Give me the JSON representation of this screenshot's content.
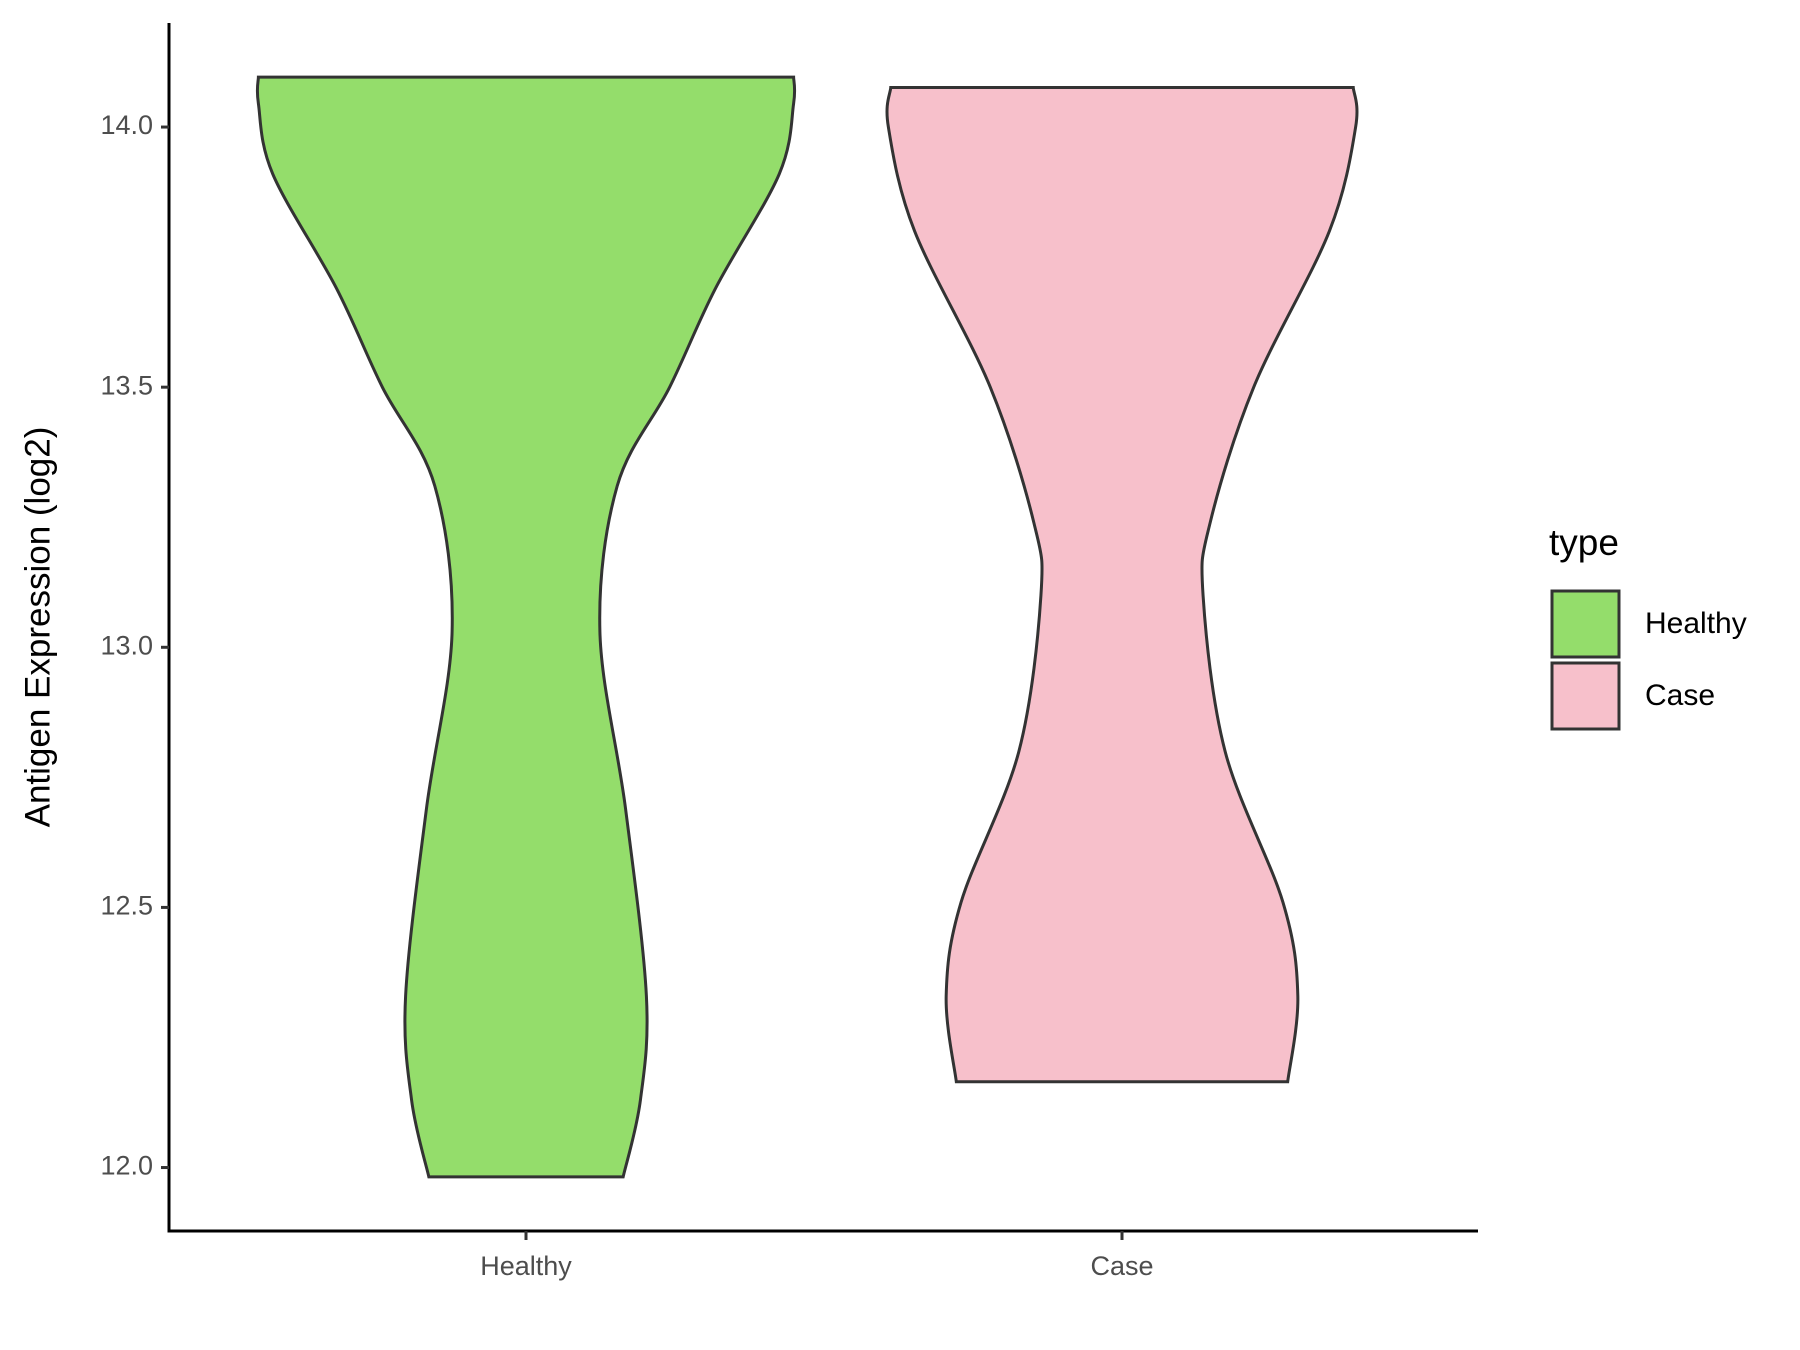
{
  "chart_data": {
    "type": "violin",
    "y_label": "Antigen Expression (log2)",
    "categories": [
      "Healthy",
      "Case"
    ],
    "legend_title": "type",
    "legend_position": "right",
    "ylim": [
      11.878,
      14.2
    ],
    "yticks": [
      {
        "value": 12,
        "label": "12.0"
      },
      {
        "value": 12.5,
        "label": "12.5"
      },
      {
        "value": 13,
        "label": "13.0"
      },
      {
        "value": 13.5,
        "label": "13.5"
      },
      {
        "value": 14,
        "label": "14.0"
      }
    ],
    "series": [
      {
        "name": "Healthy",
        "color": "#94dd6b",
        "y": [
          14.096,
          14.045,
          13.91,
          13.69,
          13.5,
          13.31,
          13.03,
          12.69,
          12.33,
          12.13,
          11.982
        ],
        "density": [
          0.449,
          0.449,
          0.425,
          0.318,
          0.241,
          0.153,
          0.124,
          0.167,
          0.202,
          0.192,
          0.163
        ]
      },
      {
        "name": "Case",
        "color": "#f7c0cb",
        "y": [
          14.076,
          14.0,
          13.8,
          13.5,
          13.24,
          13.1,
          12.8,
          12.51,
          12.33,
          12.165
        ],
        "density": [
          0.388,
          0.392,
          0.348,
          0.221,
          0.148,
          0.136,
          0.173,
          0.27,
          0.295,
          0.278
        ]
      }
    ]
  }
}
